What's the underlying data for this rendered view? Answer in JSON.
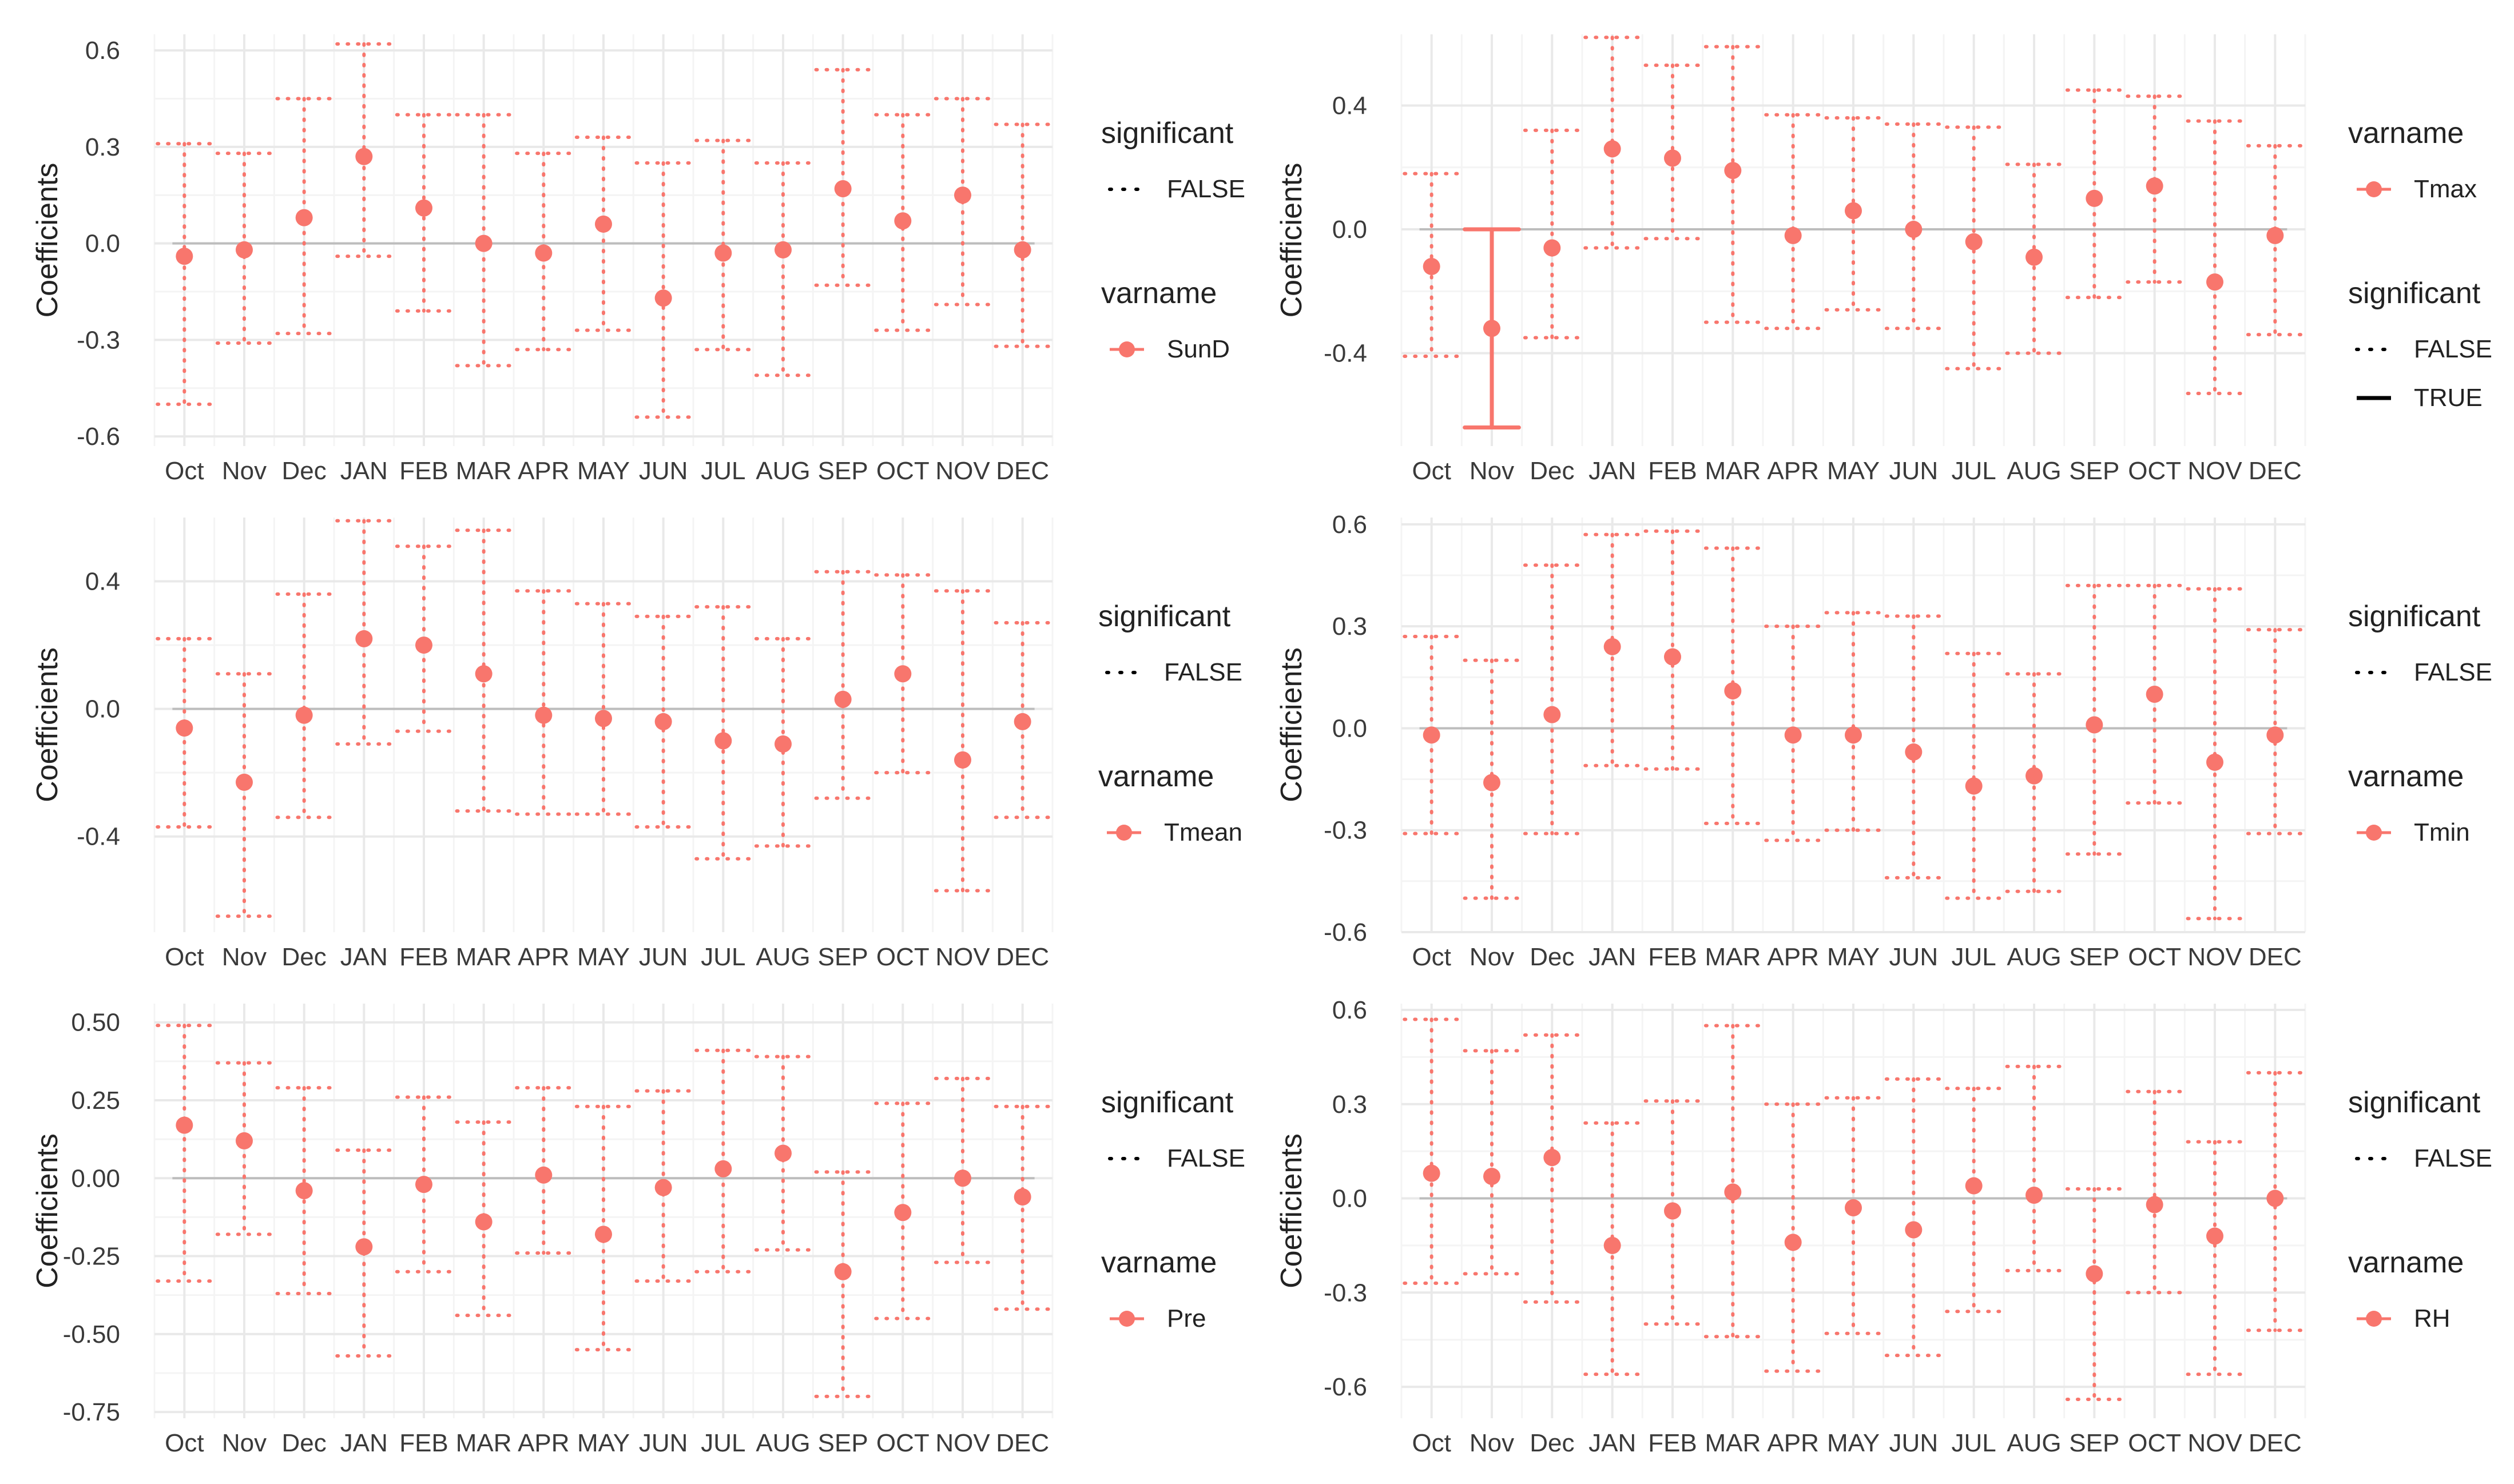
{
  "figure": {
    "background": "#ffffff",
    "point_color": "#F8766D",
    "grid_major_color": "#e9e9e9",
    "grid_minor_color": "#f4f4f4",
    "zero_line_color": "#bdbdbd",
    "legend_line_color": "#000000"
  },
  "chart_data": [
    {
      "type": "scatter",
      "ylabel": "Coefficients",
      "categories": [
        "Oct",
        "Nov",
        "Dec",
        "JAN",
        "FEB",
        "MAR",
        "APR",
        "MAY",
        "JUN",
        "JUL",
        "AUG",
        "SEP",
        "OCT",
        "NOV",
        "DEC"
      ],
      "yticks": [
        "0.6",
        "0.3",
        "0.0",
        "-0.3",
        "-0.6"
      ],
      "ytick_values": [
        0.6,
        0.3,
        0.0,
        -0.3,
        -0.6
      ],
      "ylim": [
        -0.63,
        0.65
      ],
      "grid": true,
      "legend": {
        "placement": "right",
        "groups": [
          {
            "title": "significant",
            "items": [
              {
                "label": "FALSE",
                "key": "dotted-line"
              }
            ]
          },
          {
            "title": "varname",
            "items": [
              {
                "label": "SunD",
                "key": "point"
              }
            ]
          }
        ]
      },
      "series": [
        {
          "name": "SunD",
          "values": [
            -0.04,
            -0.02,
            0.08,
            0.27,
            0.11,
            0.0,
            -0.03,
            0.06,
            -0.17,
            -0.03,
            -0.02,
            0.17,
            0.07,
            0.15,
            -0.02
          ],
          "lower": [
            -0.5,
            -0.31,
            -0.28,
            -0.04,
            -0.21,
            -0.38,
            -0.33,
            -0.27,
            -0.54,
            -0.33,
            -0.41,
            -0.13,
            -0.27,
            -0.19,
            -0.32
          ],
          "upper": [
            0.31,
            0.28,
            0.45,
            0.62,
            0.4,
            0.4,
            0.28,
            0.33,
            0.25,
            0.32,
            0.25,
            0.54,
            0.4,
            0.45,
            0.37
          ],
          "significant": [
            false,
            false,
            false,
            false,
            false,
            false,
            false,
            false,
            false,
            false,
            false,
            false,
            false,
            false,
            false
          ]
        }
      ]
    },
    {
      "type": "scatter",
      "ylabel": "Coefficients",
      "categories": [
        "Oct",
        "Nov",
        "Dec",
        "JAN",
        "FEB",
        "MAR",
        "APR",
        "MAY",
        "JUN",
        "JUL",
        "AUG",
        "SEP",
        "OCT",
        "NOV",
        "DEC"
      ],
      "yticks": [
        "0.4",
        "0.0",
        "-0.4"
      ],
      "ytick_values": [
        0.4,
        0.0,
        -0.4
      ],
      "ylim": [
        -0.7,
        0.63
      ],
      "grid": true,
      "legend": {
        "placement": "right",
        "groups": [
          {
            "title": "varname",
            "items": [
              {
                "label": "Tmax",
                "key": "point"
              }
            ]
          },
          {
            "title": "significant",
            "items": [
              {
                "label": "FALSE",
                "key": "dotted-line"
              },
              {
                "label": "TRUE",
                "key": "solid-line"
              }
            ]
          }
        ]
      },
      "series": [
        {
          "name": "Tmax",
          "values": [
            -0.12,
            -0.32,
            -0.06,
            0.26,
            0.23,
            0.19,
            -0.02,
            0.06,
            0.0,
            -0.04,
            -0.09,
            0.1,
            0.14,
            -0.17,
            -0.02
          ],
          "lower": [
            -0.41,
            -0.64,
            -0.35,
            -0.06,
            -0.03,
            -0.3,
            -0.32,
            -0.26,
            -0.32,
            -0.45,
            -0.4,
            -0.22,
            -0.17,
            -0.53,
            -0.34
          ],
          "upper": [
            0.18,
            0.0,
            0.32,
            0.62,
            0.53,
            0.59,
            0.37,
            0.36,
            0.34,
            0.33,
            0.21,
            0.45,
            0.43,
            0.35,
            0.27
          ],
          "significant": [
            false,
            true,
            false,
            false,
            false,
            false,
            false,
            false,
            false,
            false,
            false,
            false,
            false,
            false,
            false
          ]
        }
      ]
    },
    {
      "type": "scatter",
      "ylabel": "Coefficients",
      "categories": [
        "Oct",
        "Nov",
        "Dec",
        "JAN",
        "FEB",
        "MAR",
        "APR",
        "MAY",
        "JUN",
        "JUL",
        "AUG",
        "SEP",
        "OCT",
        "NOV",
        "DEC"
      ],
      "yticks": [
        "0.4",
        "0.0",
        "-0.4"
      ],
      "ytick_values": [
        0.4,
        0.0,
        -0.4
      ],
      "ylim": [
        -0.7,
        0.6
      ],
      "grid": true,
      "legend": {
        "placement": "right",
        "groups": [
          {
            "title": "significant",
            "items": [
              {
                "label": "FALSE",
                "key": "dotted-line"
              }
            ]
          },
          {
            "title": "varname",
            "items": [
              {
                "label": "Tmean",
                "key": "point"
              }
            ]
          }
        ]
      },
      "series": [
        {
          "name": "Tmean",
          "values": [
            -0.06,
            -0.23,
            -0.02,
            0.22,
            0.2,
            0.11,
            -0.02,
            -0.03,
            -0.04,
            -0.1,
            -0.11,
            0.03,
            0.11,
            -0.16,
            -0.04
          ],
          "lower": [
            -0.37,
            -0.65,
            -0.34,
            -0.11,
            -0.07,
            -0.32,
            -0.33,
            -0.33,
            -0.37,
            -0.47,
            -0.43,
            -0.28,
            -0.2,
            -0.57,
            -0.34
          ],
          "upper": [
            0.22,
            0.11,
            0.36,
            0.59,
            0.51,
            0.56,
            0.37,
            0.33,
            0.29,
            0.32,
            0.22,
            0.43,
            0.42,
            0.37,
            0.27
          ],
          "significant": [
            false,
            false,
            false,
            false,
            false,
            false,
            false,
            false,
            false,
            false,
            false,
            false,
            false,
            false,
            false
          ]
        }
      ]
    },
    {
      "type": "scatter",
      "ylabel": "Coefficients",
      "categories": [
        "Oct",
        "Nov",
        "Dec",
        "JAN",
        "FEB",
        "MAR",
        "APR",
        "MAY",
        "JUN",
        "JUL",
        "AUG",
        "SEP",
        "OCT",
        "NOV",
        "DEC"
      ],
      "yticks": [
        "0.6",
        "0.3",
        "0.0",
        "-0.3",
        "-0.6"
      ],
      "ytick_values": [
        0.6,
        0.3,
        0.0,
        -0.3,
        -0.6
      ],
      "ylim": [
        -0.6,
        0.62
      ],
      "grid": true,
      "legend": {
        "placement": "right",
        "groups": [
          {
            "title": "significant",
            "items": [
              {
                "label": "FALSE",
                "key": "dotted-line"
              }
            ]
          },
          {
            "title": "varname",
            "items": [
              {
                "label": "Tmin",
                "key": "point"
              }
            ]
          }
        ]
      },
      "series": [
        {
          "name": "Tmin",
          "values": [
            -0.02,
            -0.16,
            0.04,
            0.24,
            0.21,
            0.11,
            -0.02,
            -0.02,
            -0.07,
            -0.17,
            -0.14,
            0.01,
            0.1,
            -0.1,
            -0.02
          ],
          "lower": [
            -0.31,
            -0.5,
            -0.31,
            -0.11,
            -0.12,
            -0.28,
            -0.33,
            -0.3,
            -0.44,
            -0.5,
            -0.48,
            -0.37,
            -0.22,
            -0.56,
            -0.31
          ],
          "upper": [
            0.27,
            0.2,
            0.48,
            0.57,
            0.58,
            0.53,
            0.3,
            0.34,
            0.33,
            0.22,
            0.16,
            0.42,
            0.42,
            0.41,
            0.29
          ],
          "significant": [
            false,
            false,
            false,
            false,
            false,
            false,
            false,
            false,
            false,
            false,
            false,
            false,
            false,
            false,
            false
          ]
        }
      ]
    },
    {
      "type": "scatter",
      "ylabel": "Coefficients",
      "categories": [
        "Oct",
        "Nov",
        "Dec",
        "JAN",
        "FEB",
        "MAR",
        "APR",
        "MAY",
        "JUN",
        "JUL",
        "AUG",
        "SEP",
        "OCT",
        "NOV",
        "DEC"
      ],
      "yticks": [
        "0.50",
        "0.25",
        "0.00",
        "-0.25",
        "-0.50",
        "-0.75"
      ],
      "ytick_values": [
        0.5,
        0.25,
        0.0,
        -0.25,
        -0.5,
        -0.75
      ],
      "ylim": [
        -0.77,
        0.56
      ],
      "grid": true,
      "legend": {
        "placement": "right",
        "groups": [
          {
            "title": "significant",
            "items": [
              {
                "label": "FALSE",
                "key": "dotted-line"
              }
            ]
          },
          {
            "title": "varname",
            "items": [
              {
                "label": "Pre",
                "key": "point"
              }
            ]
          }
        ]
      },
      "series": [
        {
          "name": "Pre",
          "values": [
            0.17,
            0.12,
            -0.04,
            -0.22,
            -0.02,
            -0.14,
            0.01,
            -0.18,
            -0.03,
            0.03,
            0.08,
            -0.3,
            -0.11,
            0.0,
            -0.06
          ],
          "lower": [
            -0.33,
            -0.18,
            -0.37,
            -0.57,
            -0.3,
            -0.44,
            -0.24,
            -0.55,
            -0.33,
            -0.3,
            -0.23,
            -0.7,
            -0.45,
            -0.27,
            -0.42
          ],
          "upper": [
            0.49,
            0.37,
            0.29,
            0.09,
            0.26,
            0.18,
            0.29,
            0.23,
            0.28,
            0.41,
            0.39,
            0.02,
            0.24,
            0.32,
            0.23
          ],
          "significant": [
            false,
            false,
            false,
            false,
            false,
            false,
            false,
            false,
            false,
            false,
            false,
            false,
            false,
            false,
            false
          ]
        }
      ]
    },
    {
      "type": "scatter",
      "ylabel": "Coefficients",
      "categories": [
        "Oct",
        "Nov",
        "Dec",
        "JAN",
        "FEB",
        "MAR",
        "APR",
        "MAY",
        "JUN",
        "JUL",
        "AUG",
        "SEP",
        "OCT",
        "NOV",
        "DEC"
      ],
      "yticks": [
        "0.6",
        "0.3",
        "0.0",
        "-0.3",
        "-0.6"
      ],
      "ytick_values": [
        0.6,
        0.3,
        0.0,
        -0.3,
        -0.6
      ],
      "ylim": [
        -0.7,
        0.62
      ],
      "grid": true,
      "legend": {
        "placement": "right",
        "groups": [
          {
            "title": "significant",
            "items": [
              {
                "label": "FALSE",
                "key": "dotted-line"
              }
            ]
          },
          {
            "title": "varname",
            "items": [
              {
                "label": "RH",
                "key": "point"
              }
            ]
          }
        ]
      },
      "series": [
        {
          "name": "RH",
          "values": [
            0.08,
            0.07,
            0.13,
            -0.15,
            -0.04,
            0.02,
            -0.14,
            -0.03,
            -0.1,
            0.04,
            0.01,
            -0.24,
            -0.02,
            -0.12,
            0.0
          ],
          "lower": [
            -0.27,
            -0.24,
            -0.33,
            -0.56,
            -0.4,
            -0.44,
            -0.55,
            -0.43,
            -0.5,
            -0.36,
            -0.23,
            -0.64,
            -0.3,
            -0.56,
            -0.42
          ],
          "upper": [
            0.57,
            0.47,
            0.52,
            0.24,
            0.31,
            0.55,
            0.3,
            0.32,
            0.38,
            0.35,
            0.42,
            0.03,
            0.34,
            0.18,
            0.4
          ],
          "significant": [
            false,
            false,
            false,
            false,
            false,
            false,
            false,
            false,
            false,
            false,
            false,
            false,
            false,
            false,
            false
          ]
        }
      ]
    }
  ]
}
